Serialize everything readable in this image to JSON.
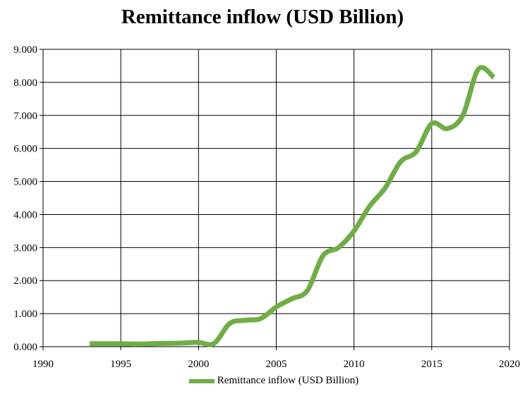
{
  "chart_data": {
    "type": "line",
    "title": "Remittance inflow (USD Billion)",
    "xlabel": "",
    "ylabel": "",
    "xlim": [
      1990,
      2020
    ],
    "ylim": [
      0,
      9
    ],
    "x_ticks": [
      1990,
      1995,
      2000,
      2005,
      2010,
      2015,
      2020
    ],
    "x_tick_labels": [
      "1990",
      "1995",
      "2000",
      "2005",
      "2010",
      "2015",
      "2020"
    ],
    "y_ticks": [
      0,
      1,
      2,
      3,
      4,
      5,
      6,
      7,
      8,
      9
    ],
    "y_tick_labels": [
      "0.000",
      "1.000",
      "2.000",
      "3.000",
      "4.000",
      "5.000",
      "6.000",
      "7.000",
      "8.000",
      "9.000"
    ],
    "grid": true,
    "legend_position": "bottom",
    "line_style": "smoothed",
    "series": [
      {
        "name": "Remittance inflow (USD Billion)",
        "color": "#70ad47",
        "x": [
          1993,
          1994,
          1995,
          1996,
          1997,
          1998,
          1999,
          2000,
          2001,
          2002,
          2003,
          2004,
          2005,
          2006,
          2007,
          2008,
          2009,
          2010,
          2011,
          2012,
          2013,
          2014,
          2015,
          2016,
          2017,
          2018,
          2019
        ],
        "y": [
          0.09,
          0.09,
          0.09,
          0.08,
          0.09,
          0.1,
          0.11,
          0.13,
          0.1,
          0.7,
          0.8,
          0.85,
          1.2,
          1.45,
          1.7,
          2.75,
          3.0,
          3.5,
          4.25,
          4.8,
          5.6,
          5.9,
          6.75,
          6.6,
          7.0,
          8.4,
          8.15
        ]
      }
    ]
  }
}
